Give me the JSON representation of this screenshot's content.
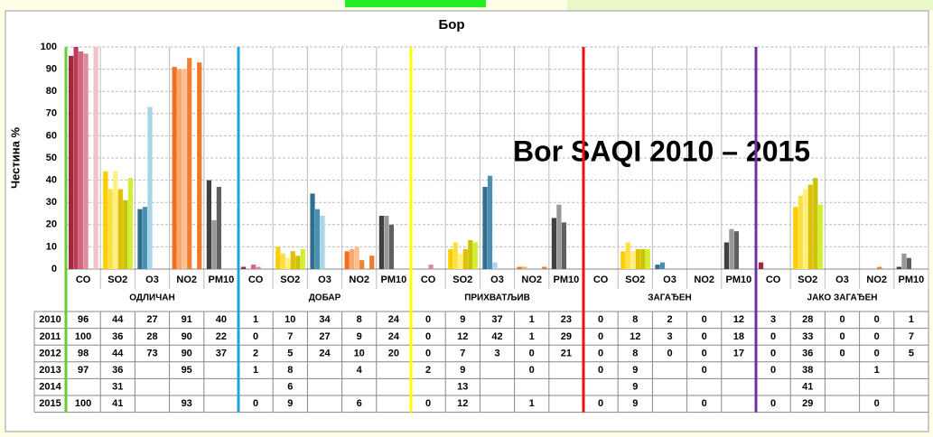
{
  "chart_data": {
    "type": "bar",
    "title": "Бор",
    "y_label": "Честина %",
    "annotation": "Bor   SAQI 2010 – 2015",
    "groups": [
      {
        "name": "ОДЛИЧАН",
        "color": "#66cc33"
      },
      {
        "name": "ДОБАР",
        "color": "#1fa3e0"
      },
      {
        "name": "ПРИХВАТЉИВ",
        "color": "#ffff00"
      },
      {
        "name": "ЗАГАЂЕН",
        "color": "#ee1111"
      },
      {
        "name": "ЈАКО ЗАГАЂЕН",
        "color": "#7030a0"
      }
    ],
    "pollutants": [
      "CO",
      "SO2",
      "O3",
      "NO2",
      "PM10"
    ],
    "pollutant_colors": [
      [
        "#a0283c",
        "#c03a58",
        "#cf6a7e",
        "#dd8c9c",
        "#e8aab4",
        "#eec4c8"
      ],
      [
        "#ffcc00",
        "#ffe040",
        "#fff080",
        "#e0c000",
        "#c8c400",
        "#d4ee30"
      ],
      [
        "#2e6e8e",
        "#4a90b0",
        "#a8d6e6",
        "#b8e0ec",
        "#c8e8f0",
        "#d0eef4"
      ],
      [
        "#f07020",
        "#f8a868",
        "#fcc090",
        "#f08030",
        "#f4a050",
        "#f07828"
      ],
      [
        "#404040",
        "#989898",
        "#606060",
        "#a0a0a0",
        "#b0b0b0",
        "#707070"
      ]
    ],
    "series": [
      {
        "name": "2010",
        "values": [
          96,
          44,
          27,
          91,
          40,
          1,
          10,
          34,
          8,
          24,
          0,
          9,
          37,
          1,
          23,
          0,
          8,
          2,
          0,
          12,
          3,
          28,
          0,
          0,
          1
        ]
      },
      {
        "name": "2011",
        "values": [
          100,
          36,
          28,
          90,
          22,
          0,
          7,
          27,
          9,
          24,
          0,
          12,
          42,
          1,
          29,
          0,
          12,
          3,
          0,
          18,
          0,
          33,
          0,
          0,
          7
        ]
      },
      {
        "name": "2012",
        "values": [
          98,
          44,
          73,
          90,
          37,
          2,
          5,
          24,
          10,
          20,
          0,
          7,
          3,
          0,
          21,
          0,
          8,
          0,
          0,
          17,
          0,
          36,
          0,
          0,
          5
        ]
      },
      {
        "name": "2013",
        "values": [
          97,
          36,
          null,
          95,
          null,
          1,
          8,
          null,
          4,
          null,
          2,
          9,
          null,
          0,
          null,
          0,
          9,
          null,
          0,
          null,
          0,
          38,
          null,
          1,
          null
        ]
      },
      {
        "name": "2014",
        "values": [
          null,
          31,
          null,
          null,
          null,
          null,
          6,
          null,
          null,
          null,
          null,
          13,
          null,
          null,
          null,
          null,
          9,
          null,
          null,
          null,
          null,
          41,
          null,
          null,
          null
        ]
      },
      {
        "name": "2015",
        "values": [
          100,
          41,
          null,
          93,
          null,
          0,
          9,
          null,
          6,
          null,
          0,
          12,
          null,
          1,
          null,
          0,
          9,
          null,
          0,
          null,
          0,
          29,
          null,
          0,
          null
        ]
      }
    ],
    "ylim": [
      0,
      100
    ],
    "yticks": [
      0,
      10,
      20,
      30,
      40,
      50,
      60,
      70,
      80,
      90,
      100
    ],
    "grid": true
  }
}
